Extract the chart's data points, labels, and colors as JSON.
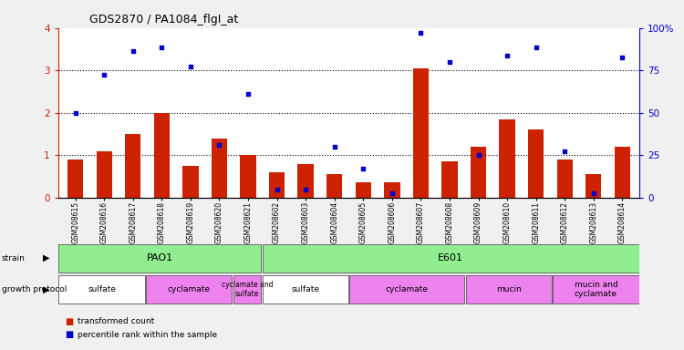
{
  "title": "GDS2870 / PA1084_flgI_at",
  "samples": [
    "GSM208615",
    "GSM208616",
    "GSM208617",
    "GSM208618",
    "GSM208619",
    "GSM208620",
    "GSM208621",
    "GSM208602",
    "GSM208603",
    "GSM208604",
    "GSM208605",
    "GSM208606",
    "GSM208607",
    "GSM208608",
    "GSM208609",
    "GSM208610",
    "GSM208611",
    "GSM208612",
    "GSM208613",
    "GSM208614"
  ],
  "red_bars": [
    0.9,
    1.1,
    1.5,
    2.0,
    0.75,
    1.4,
    1.0,
    0.6,
    0.8,
    0.55,
    0.37,
    0.37,
    3.05,
    0.85,
    1.2,
    1.85,
    1.6,
    0.9,
    0.55,
    1.2
  ],
  "blue_dots": [
    2.0,
    2.9,
    3.45,
    3.55,
    3.1,
    1.25,
    2.45,
    0.2,
    0.2,
    1.2,
    0.68,
    0.1,
    3.88,
    3.2,
    1.0,
    3.35,
    3.55,
    1.1,
    0.1,
    3.3
  ],
  "red_color": "#cc2200",
  "blue_color": "#0000cc",
  "ylim_left": [
    0,
    4
  ],
  "ylim_right": [
    0,
    100
  ],
  "ytick_labels_right": [
    "0",
    "25",
    "50",
    "75",
    "100%"
  ],
  "strain_labels": [
    {
      "label": "PAO1",
      "start": 0,
      "end": 7,
      "color": "#90ee90"
    },
    {
      "label": "E601",
      "start": 7,
      "end": 20,
      "color": "#90ee90"
    }
  ],
  "protocol_groups": [
    {
      "label": "sulfate",
      "start": 0,
      "end": 3,
      "color": "#ffffff"
    },
    {
      "label": "cyclamate",
      "start": 3,
      "end": 6,
      "color": "#ee82ee"
    },
    {
      "label": "cyclamate and\nsulfate",
      "start": 6,
      "end": 7,
      "color": "#ee82ee"
    },
    {
      "label": "sulfate",
      "start": 7,
      "end": 10,
      "color": "#ffffff"
    },
    {
      "label": "cyclamate",
      "start": 10,
      "end": 14,
      "color": "#ee82ee"
    },
    {
      "label": "mucin",
      "start": 14,
      "end": 17,
      "color": "#ee82ee"
    },
    {
      "label": "mucin and\ncyclamate",
      "start": 17,
      "end": 20,
      "color": "#ee82ee"
    }
  ],
  "legend_items": [
    {
      "label": "transformed count",
      "color": "#cc2200"
    },
    {
      "label": "percentile rank within the sample",
      "color": "#0000cc"
    }
  ],
  "bg_color": "#f0f0f0",
  "plot_bg": "#ffffff"
}
